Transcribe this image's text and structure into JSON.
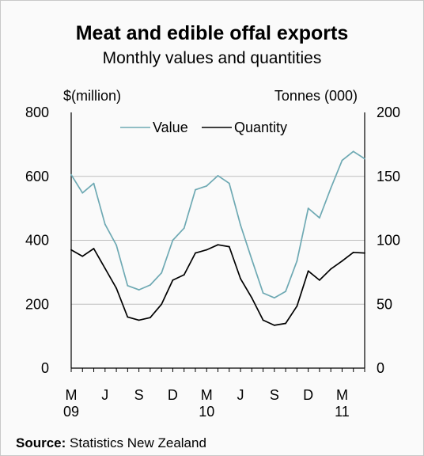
{
  "chart_data": {
    "type": "line",
    "title": "Meat and edible offal exports",
    "subtitle": "Monthly values and quantities",
    "y_left_label": "$(million)",
    "y_right_label": "Tonnes (000)",
    "y_left_range": [
      0,
      800
    ],
    "y_right_range": [
      0,
      200
    ],
    "y_left_ticks": [
      "0",
      "200",
      "400",
      "600",
      "800"
    ],
    "y_right_ticks": [
      "0",
      "50",
      "100",
      "150",
      "200"
    ],
    "x_tick_labels": [
      {
        "month": "M",
        "year": "09"
      },
      {
        "month": "J",
        "year": ""
      },
      {
        "month": "S",
        "year": ""
      },
      {
        "month": "D",
        "year": ""
      },
      {
        "month": "M",
        "year": "10"
      },
      {
        "month": "J",
        "year": ""
      },
      {
        "month": "S",
        "year": ""
      },
      {
        "month": "D",
        "year": ""
      },
      {
        "month": "M",
        "year": "11"
      }
    ],
    "grid": true,
    "legend_position": "top",
    "series": [
      {
        "name": "Value",
        "axis": "left",
        "color": "#6ea9b3",
        "values": [
          605,
          548,
          578,
          450,
          385,
          258,
          245,
          260,
          298,
          400,
          438,
          558,
          570,
          602,
          578,
          448,
          340,
          235,
          220,
          240,
          335,
          500,
          470,
          563,
          650,
          678,
          655
        ]
      },
      {
        "name": "Quantity",
        "axis": "right",
        "color": "#000000",
        "values": [
          92.5,
          87.5,
          93.5,
          78,
          62.5,
          40,
          37.5,
          39.5,
          50,
          68.8,
          73,
          90,
          92.5,
          96.5,
          95,
          70,
          55,
          37.5,
          33.5,
          35,
          48.5,
          76,
          68.8,
          77.5,
          83.8,
          90.5,
          90
        ]
      }
    ]
  },
  "source": {
    "label": "Source:",
    "text": " Statistics New Zealand"
  }
}
